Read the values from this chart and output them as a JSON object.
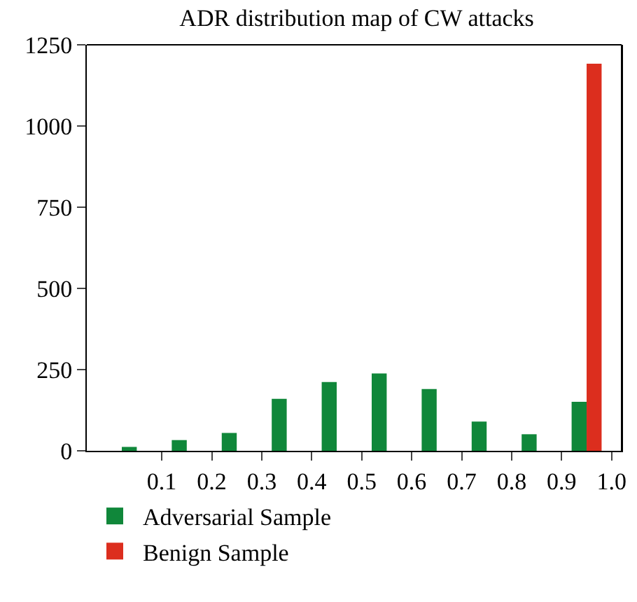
{
  "chart_data": {
    "type": "bar",
    "title": "ADR distribution map of CW attacks",
    "series": [
      {
        "name": "Adversarial Sample",
        "color": "#10873a",
        "x": [
          0.035,
          0.135,
          0.235,
          0.335,
          0.435,
          0.535,
          0.635,
          0.735,
          0.835,
          0.935
        ],
        "values": [
          12,
          33,
          55,
          160,
          212,
          238,
          190,
          90,
          51,
          151
        ]
      },
      {
        "name": "Benign Sample",
        "color": "#dc2e1e",
        "x": [
          0.965
        ],
        "values": [
          1192
        ]
      }
    ],
    "xlim": [
      -0.05,
      1.02
    ],
    "xticks": [
      0.1,
      0.2,
      0.3,
      0.4,
      0.5,
      0.6,
      0.7,
      0.8,
      0.9,
      {
        "value": 1.0,
        "label": "1.0"
      }
    ],
    "ylim": [
      0,
      1250
    ],
    "yticks": [
      0,
      250,
      500,
      750,
      1000,
      1250
    ],
    "grid": false,
    "legend": "bottom"
  }
}
